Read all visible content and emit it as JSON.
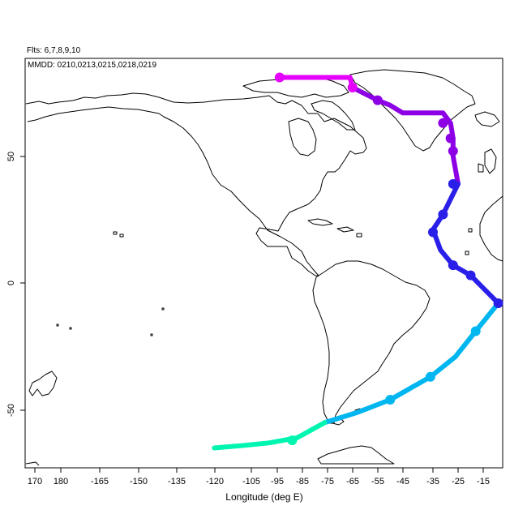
{
  "header": {
    "flights_label": "Flts: 6,7,8,9,10",
    "dates_label": "MMDD: 0210,0213,0215,0218,0219"
  },
  "axes": {
    "xlabel": "Longitude (deg E)",
    "ylabel": "",
    "x_ticks": [
      "170",
      "180",
      "-165",
      "-150",
      "-135",
      "-120",
      "-105",
      "-95",
      "-85",
      "-75",
      "-65",
      "-55",
      "-45",
      "-35",
      "-25",
      "-15"
    ],
    "y_ticks": [
      "50",
      "0",
      "-50"
    ]
  },
  "colors": {
    "land_outline": "#000000",
    "frame": "#000000",
    "flight_6": "#8d00e6",
    "flight_6b": "#e600ff",
    "flight_7": "#6a00e0",
    "flight_8": "#2a1fe8",
    "flight_9": "#00b6f0",
    "flight_10": "#00f5b0"
  },
  "chart_data": {
    "type": "map-track",
    "x_unit": "deg E",
    "y_unit": "deg N",
    "tracks": [
      {
        "color": "#e600ff",
        "points": [
          [
            -96,
            81
          ],
          [
            -80,
            81
          ],
          [
            -68,
            81
          ],
          [
            -67,
            77
          ]
        ]
      },
      {
        "color": "#8d00e6",
        "points": [
          [
            -67,
            77
          ],
          [
            -57,
            72
          ],
          [
            -52,
            70
          ],
          [
            -47,
            67
          ],
          [
            -40,
            67
          ],
          [
            -31,
            67
          ],
          [
            -28,
            63
          ],
          [
            -27,
            57
          ],
          [
            -27,
            50
          ],
          [
            -25,
            39
          ]
        ]
      },
      {
        "color": "#2a1fe8",
        "points": [
          [
            -25,
            39
          ],
          [
            -28,
            33
          ],
          [
            -31,
            27
          ],
          [
            -35,
            21
          ],
          [
            -32,
            13
          ],
          [
            -27,
            7
          ],
          [
            -20,
            3
          ],
          [
            -15,
            -2
          ],
          [
            -9,
            -8
          ]
        ]
      },
      {
        "color": "#00b6f0",
        "points": [
          [
            -9,
            -8
          ],
          [
            -18,
            -19
          ],
          [
            -26,
            -29
          ],
          [
            -36,
            -37
          ],
          [
            -52,
            -46
          ],
          [
            -65,
            -51
          ],
          [
            -78,
            -55
          ]
        ]
      },
      {
        "color": "#00f5b0",
        "points": [
          [
            -78,
            -55
          ],
          [
            -89,
            -61
          ],
          [
            -100,
            -63
          ],
          [
            -110,
            -64
          ],
          [
            -122,
            -65
          ]
        ]
      }
    ],
    "markers": [
      {
        "color": "#e600ff",
        "points": [
          [
            -96,
            81
          ],
          [
            -67,
            77
          ]
        ]
      },
      {
        "color": "#8d00e6",
        "points": [
          [
            -57,
            72
          ],
          [
            -31,
            63
          ],
          [
            -28,
            57
          ],
          [
            -27,
            52
          ]
        ]
      },
      {
        "color": "#2a1fe8",
        "points": [
          [
            -27,
            39
          ],
          [
            -31,
            27
          ],
          [
            -35,
            20
          ],
          [
            -27,
            7
          ],
          [
            -20,
            3
          ],
          [
            -9,
            -8
          ]
        ]
      },
      {
        "color": "#00b6f0",
        "points": [
          [
            -18,
            -19
          ],
          [
            -36,
            -37
          ],
          [
            -52,
            -46
          ]
        ]
      },
      {
        "color": "#00f5b0",
        "points": [
          [
            -91,
            -62
          ]
        ]
      }
    ]
  }
}
